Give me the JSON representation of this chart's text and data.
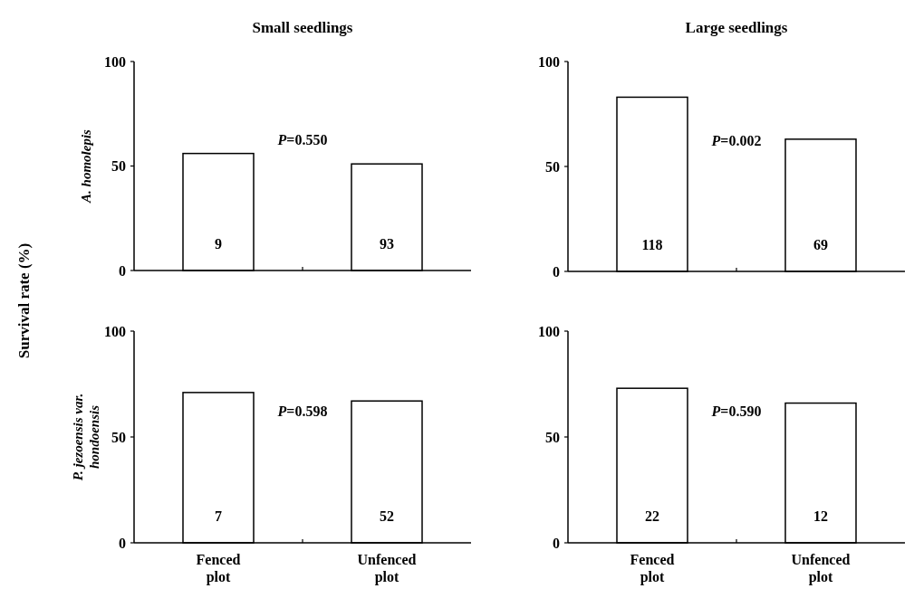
{
  "chart_data": [
    {
      "type": "bar",
      "title": "Small seedlings",
      "ylabel": "A. homolepis",
      "categories": [
        null,
        null
      ],
      "values": [
        56,
        51
      ],
      "color": "#ffffff",
      "ylim": [
        0,
        100
      ],
      "yticks": [
        0,
        50,
        100
      ],
      "tick_labels": "y",
      "annotations": [
        "P=0.550",
        "9",
        "93",
        "Survival rate (%)"
      ]
    },
    {
      "type": "bar",
      "title": "Large seedlings",
      "categories": [
        null,
        null
      ],
      "values": [
        83,
        63
      ],
      "color": "#ffffff",
      "ylim": [
        0,
        100
      ],
      "yticks": [
        0,
        50,
        100
      ],
      "tick_labels": "y",
      "annotations": [
        "P=0.002",
        "118",
        "69"
      ]
    },
    {
      "type": "bar",
      "ylabel": "P. jezoensis var. hondoensis",
      "categories": [
        "Fenced plot",
        "Unfenced plot"
      ],
      "values": [
        71,
        67
      ],
      "color": "#ffffff",
      "ylim": [
        0,
        100
      ],
      "yticks": [
        0,
        50,
        100
      ],
      "annotations": [
        "P=0.598",
        "7",
        "52"
      ]
    },
    {
      "type": "bar",
      "categories": [
        "Fenced plot",
        "Unfenced plot"
      ],
      "values": [
        73,
        66
      ],
      "color": "#ffffff",
      "ylim": [
        0,
        100
      ],
      "yticks": [
        0,
        50,
        100
      ],
      "annotations": [
        "P=0.590",
        "22",
        "12"
      ]
    }
  ]
}
